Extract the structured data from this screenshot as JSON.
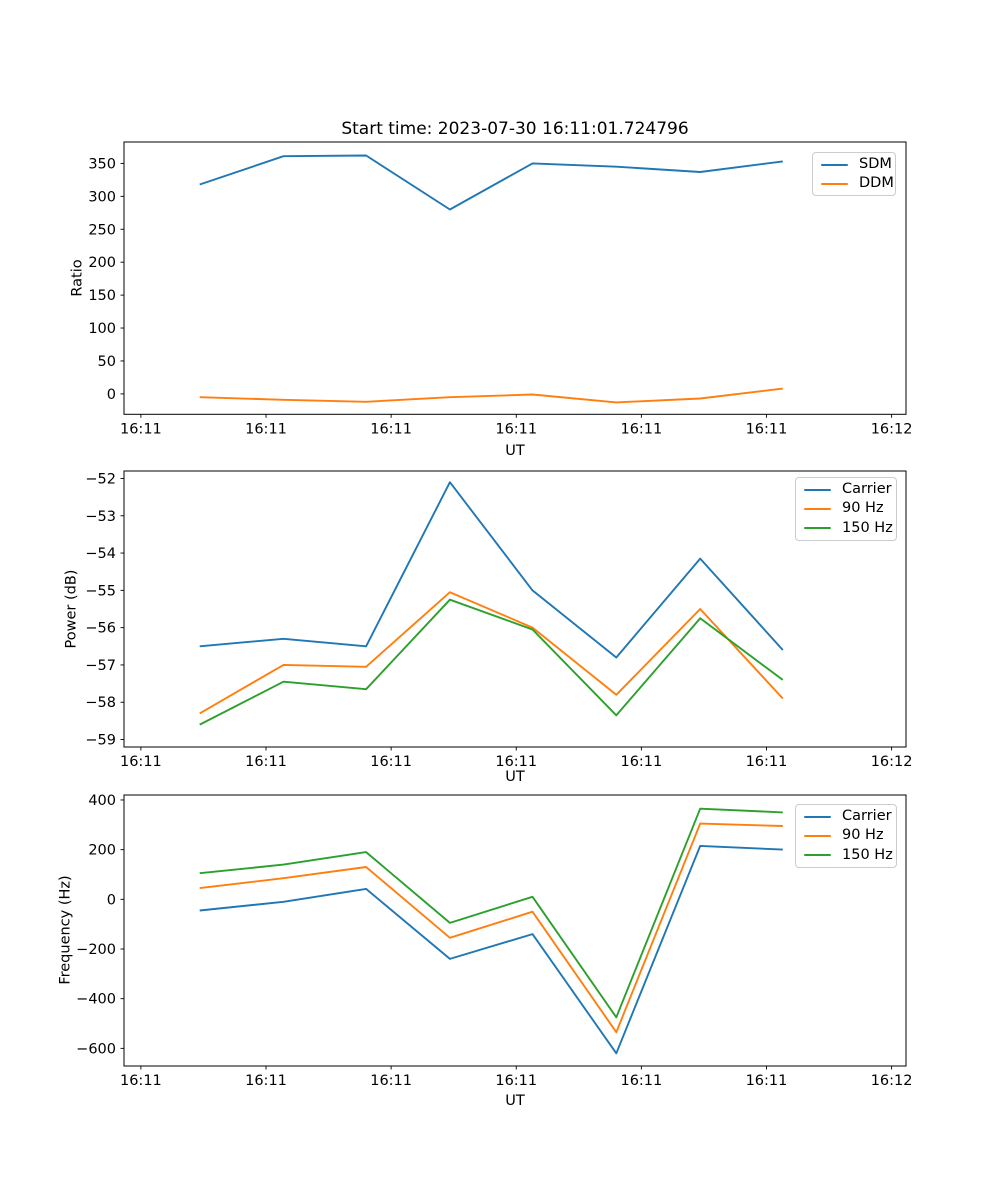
{
  "figure": {
    "title": "Start time: 2023-07-30 16:11:01.724796",
    "background": "#ffffff",
    "text_color": "#000000"
  },
  "colors": {
    "blue": "#1f77b4",
    "orange": "#ff7f0e",
    "green": "#2ca02c",
    "spine": "#000000",
    "legend_border": "#cccccc"
  },
  "chart_data": [
    {
      "type": "line",
      "title": "",
      "xlabel": "UT",
      "ylabel": "Ratio",
      "legend_position": "upper right",
      "grid": false,
      "x_units": "seconds after 16:11:00 UT",
      "xlim": [
        -1.35,
        61.15
      ],
      "ylim": [
        -31,
        382.5
      ],
      "x_ticks": [
        0,
        10,
        20,
        30,
        40,
        50,
        60
      ],
      "x_tick_labels": [
        "16:11",
        "16:11",
        "16:11",
        "16:11",
        "16:11",
        "16:11",
        "16:12"
      ],
      "y_ticks": [
        0,
        50,
        100,
        150,
        200,
        250,
        300,
        350
      ],
      "y_tick_labels": [
        "0",
        "50",
        "100",
        "150",
        "200",
        "250",
        "300",
        "350"
      ],
      "x": [
        4.7,
        11.4,
        18.0,
        24.7,
        31.3,
        38.0,
        44.7,
        51.3
      ],
      "series": [
        {
          "name": "SDM",
          "color": "#1f77b4",
          "values": [
            318,
            361,
            362,
            280,
            350,
            345,
            337,
            353
          ]
        },
        {
          "name": "DDM",
          "color": "#ff7f0e",
          "values": [
            -5,
            -9,
            -12,
            -5,
            -1,
            -13,
            -7,
            8
          ]
        }
      ]
    },
    {
      "type": "line",
      "title": "",
      "xlabel": "UT",
      "ylabel": "Power (dB)",
      "legend_position": "upper right",
      "grid": false,
      "x_units": "seconds after 16:11:00 UT",
      "xlim": [
        -1.35,
        61.15
      ],
      "ylim": [
        -59.2,
        -51.8
      ],
      "x_ticks": [
        0,
        10,
        20,
        30,
        40,
        50,
        60
      ],
      "x_tick_labels": [
        "16:11",
        "16:11",
        "16:11",
        "16:11",
        "16:11",
        "16:11",
        "16:12"
      ],
      "y_ticks": [
        -52,
        -53,
        -54,
        -55,
        -56,
        -57,
        -58,
        -59
      ],
      "y_tick_labels": [
        "−52",
        "−53",
        "−54",
        "−55",
        "−56",
        "−57",
        "−58",
        "−59"
      ],
      "x": [
        4.7,
        11.4,
        18.0,
        24.7,
        31.3,
        38.0,
        44.7,
        51.3
      ],
      "series": [
        {
          "name": "Carrier",
          "color": "#1f77b4",
          "values": [
            -56.5,
            -56.3,
            -56.5,
            -52.1,
            -55.0,
            -56.8,
            -54.15,
            -56.6
          ]
        },
        {
          "name": "90 Hz",
          "color": "#ff7f0e",
          "values": [
            -58.3,
            -57.0,
            -57.05,
            -55.05,
            -56.0,
            -57.8,
            -55.5,
            -57.9
          ]
        },
        {
          "name": "150 Hz",
          "color": "#2ca02c",
          "values": [
            -58.6,
            -57.45,
            -57.65,
            -55.25,
            -56.05,
            -58.35,
            -55.75,
            -57.4
          ]
        }
      ]
    },
    {
      "type": "line",
      "title": "",
      "xlabel": "UT",
      "ylabel": "Frequency (Hz)",
      "legend_position": "upper right",
      "grid": false,
      "x_units": "seconds after 16:11:00 UT",
      "xlim": [
        -1.35,
        61.15
      ],
      "ylim": [
        -671,
        420
      ],
      "x_ticks": [
        0,
        10,
        20,
        30,
        40,
        50,
        60
      ],
      "x_tick_labels": [
        "16:11",
        "16:11",
        "16:11",
        "16:11",
        "16:11",
        "16:11",
        "16:12"
      ],
      "y_ticks": [
        400,
        200,
        0,
        -200,
        -400,
        -600
      ],
      "y_tick_labels": [
        "400",
        "200",
        "0",
        "−200",
        "−400",
        "−600"
      ],
      "x": [
        4.7,
        11.4,
        18.0,
        24.7,
        31.3,
        38.0,
        44.7,
        51.3
      ],
      "series": [
        {
          "name": "Carrier",
          "color": "#1f77b4",
          "values": [
            -45,
            -10,
            42,
            -240,
            -140,
            -620,
            215,
            200
          ]
        },
        {
          "name": "90 Hz",
          "color": "#ff7f0e",
          "values": [
            45,
            85,
            130,
            -155,
            -50,
            -535,
            305,
            295
          ]
        },
        {
          "name": "150 Hz",
          "color": "#2ca02c",
          "values": [
            105,
            140,
            190,
            -95,
            10,
            -475,
            365,
            350
          ]
        }
      ]
    }
  ]
}
